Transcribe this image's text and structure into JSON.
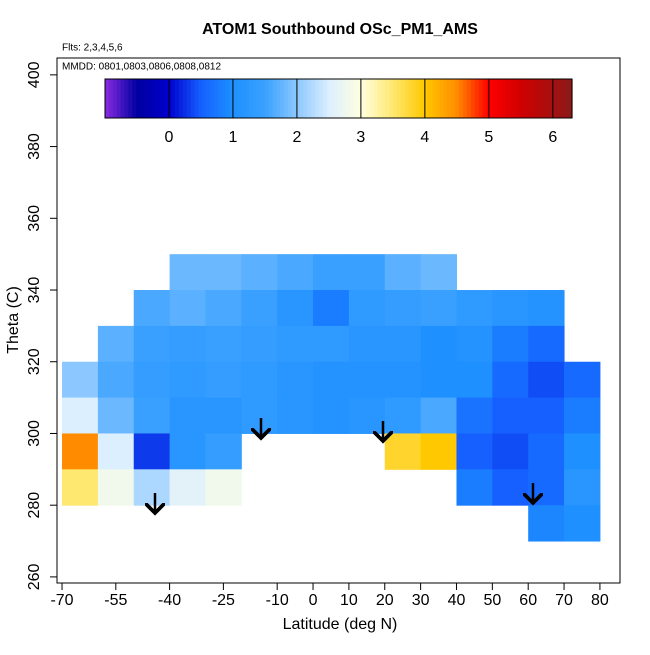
{
  "chart_data": {
    "type": "heatmap",
    "title": "ATOM1 Southbound OSc_PM1_AMS",
    "subtitle": "Flts: 2,3,4,5,6",
    "annotation": "MMDD: 0801,0803,0806,0808,0812",
    "x_label": "Latitude (deg N)",
    "y_label": "Theta (C)",
    "xlim": [
      -71.4,
      85.6
    ],
    "ylim": [
      258.3,
      404.7
    ],
    "xticks": [
      -70,
      -55,
      -40,
      -25,
      -10,
      0,
      10,
      20,
      30,
      40,
      50,
      60,
      70,
      80
    ],
    "yticks": [
      260,
      280,
      300,
      320,
      340,
      360,
      380,
      400
    ],
    "x": [
      -65,
      -55,
      -45,
      -35,
      -25,
      -15,
      -5,
      5,
      15,
      25,
      35,
      45,
      55,
      65,
      75
    ],
    "y": [
      345,
      335,
      325,
      315,
      305,
      295,
      285,
      275
    ],
    "cell_width": 10,
    "cell_height": 10,
    "values": [
      [
        null,
        null,
        null,
        1.8,
        1.8,
        1.7,
        1.6,
        1.5,
        1.5,
        1.7,
        1.8,
        null,
        null,
        null,
        null
      ],
      [
        null,
        null,
        1.6,
        1.7,
        1.6,
        1.5,
        1.2,
        0.8,
        1.3,
        1.4,
        1.5,
        1.3,
        1.2,
        1.1,
        null
      ],
      [
        null,
        1.7,
        1.5,
        1.4,
        1.5,
        1.4,
        1.3,
        1.3,
        1.2,
        1.2,
        1.0,
        1.1,
        0.8,
        0.6,
        null
      ],
      [
        2.0,
        1.6,
        1.4,
        1.3,
        1.4,
        1.3,
        1.2,
        1.1,
        1.1,
        1.1,
        1.0,
        1.0,
        0.6,
        0.4,
        0.6
      ],
      [
        2.5,
        1.8,
        1.5,
        1.2,
        1.2,
        1.3,
        1.2,
        1.1,
        1.2,
        1.3,
        1.6,
        0.7,
        0.5,
        0.5,
        0.8
      ],
      [
        4.5,
        2.5,
        0.3,
        1.2,
        1.4,
        null,
        null,
        null,
        null,
        3.8,
        4.0,
        0.5,
        0.4,
        0.6,
        1.0
      ],
      [
        3.5,
        2.8,
        2.2,
        2.6,
        2.8,
        null,
        null,
        null,
        null,
        null,
        null,
        0.8,
        0.5,
        0.6,
        1.2
      ],
      [
        null,
        null,
        null,
        null,
        null,
        null,
        null,
        null,
        null,
        null,
        null,
        null,
        null,
        0.9,
        1.0
      ]
    ],
    "colorbar": {
      "lim": [
        -1,
        6.3
      ],
      "ticks": [
        0,
        1,
        2,
        3,
        4,
        5,
        6
      ],
      "stops": [
        -1,
        -0.5,
        0,
        0.5,
        1,
        1.5,
        2,
        2.5,
        3,
        3.5,
        4,
        4.5,
        5,
        5.5,
        6.3
      ],
      "colors": [
        "#8a2be2",
        "#0000a0",
        "#0000cd",
        "#1560ff",
        "#1e90ff",
        "#3aa0ff",
        "#8cc8ff",
        "#dcefff",
        "#ffffe0",
        "#ffe870",
        "#ffc800",
        "#ff8c00",
        "#ff0000",
        "#d00000",
        "#8b1a1a"
      ]
    }
  }
}
